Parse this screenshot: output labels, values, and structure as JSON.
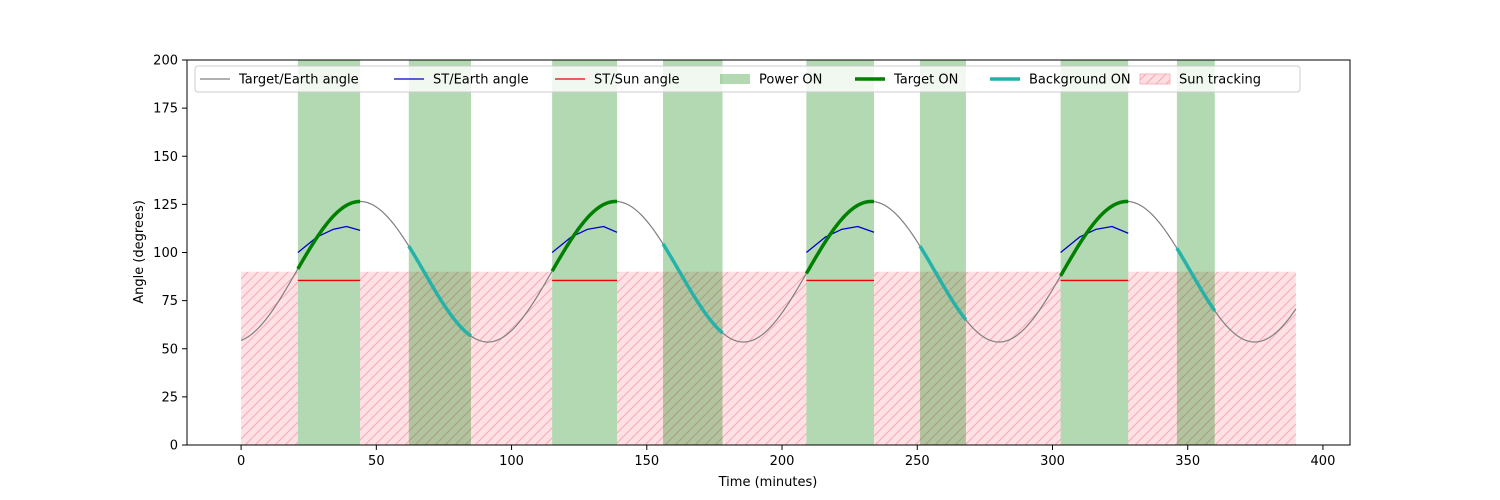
{
  "chart_data": {
    "type": "line",
    "title": "",
    "xlabel": "Time (minutes)",
    "ylabel": "Angle (degrees)",
    "xlim": [
      -20,
      410
    ],
    "ylim": [
      0,
      200
    ],
    "xticks": [
      0,
      50,
      100,
      150,
      200,
      250,
      300,
      350,
      400
    ],
    "yticks": [
      0,
      25,
      50,
      75,
      100,
      125,
      150,
      175,
      200
    ],
    "grid": false,
    "legend_position": "top",
    "colors": {
      "target_earth": "#808080",
      "st_earth": "#0000cc",
      "st_sun": "#ee0000",
      "power_on": "#b3d9b3",
      "target_on": "#008000",
      "background_on": "#20b2aa",
      "sun_tracking": "#ffdde1",
      "sun_tracking_hatch": "#f4aab4"
    },
    "legend": [
      {
        "key": "target_earth",
        "label": "Target/Earth angle"
      },
      {
        "key": "st_earth",
        "label": "ST/Earth angle"
      },
      {
        "key": "st_sun",
        "label": "ST/Sun angle"
      },
      {
        "key": "power_on",
        "label": "Power ON"
      },
      {
        "key": "target_on",
        "label": "Target ON"
      },
      {
        "key": "background_on",
        "label": "Background ON"
      },
      {
        "key": "sun_tracking",
        "label": "Sun tracking"
      }
    ],
    "target_earth_angle": {
      "t_start": 0,
      "t_end": 390,
      "mean": 90,
      "amplitude": 36.5,
      "period_minutes": 94.5,
      "peak_time": 44
    },
    "power_on_intervals": [
      [
        21,
        44
      ],
      [
        62,
        85
      ],
      [
        115,
        139
      ],
      [
        156,
        178
      ],
      [
        209,
        234
      ],
      [
        251,
        268
      ],
      [
        303,
        328
      ],
      [
        346,
        360
      ]
    ],
    "sun_tracking_intervals": [
      [
        0,
        21
      ],
      [
        44,
        115
      ],
      [
        139,
        209
      ],
      [
        234,
        303
      ],
      [
        328,
        390
      ]
    ],
    "sun_tracking_level": 90,
    "target_on_intervals": [
      [
        21,
        44
      ],
      [
        115,
        139
      ],
      [
        209,
        234
      ],
      [
        303,
        328
      ]
    ],
    "background_on_intervals": [
      [
        62,
        85
      ],
      [
        156,
        178
      ],
      [
        251,
        268
      ],
      [
        346,
        360
      ]
    ],
    "st_earth_segments": [
      {
        "x": [
          21,
          28,
          34,
          39,
          44
        ],
        "y": [
          100,
          108,
          112,
          113.5,
          111.5
        ]
      },
      {
        "x": [
          115,
          122,
          128,
          134,
          139
        ],
        "y": [
          100,
          108,
          112,
          113.5,
          110.5
        ]
      },
      {
        "x": [
          209,
          216,
          222,
          228,
          234
        ],
        "y": [
          100,
          108,
          112,
          113.5,
          110.5
        ]
      },
      {
        "x": [
          303,
          310,
          316,
          322,
          328
        ],
        "y": [
          100,
          108,
          112,
          113.5,
          110
        ]
      }
    ],
    "st_sun_segments": [
      {
        "x": [
          21,
          44
        ],
        "y": [
          85.5,
          85.5
        ]
      },
      {
        "x": [
          115,
          139
        ],
        "y": [
          85.5,
          85.5
        ]
      },
      {
        "x": [
          209,
          234
        ],
        "y": [
          85.5,
          85.5
        ]
      },
      {
        "x": [
          303,
          328
        ],
        "y": [
          85.5,
          85.5
        ]
      }
    ]
  }
}
